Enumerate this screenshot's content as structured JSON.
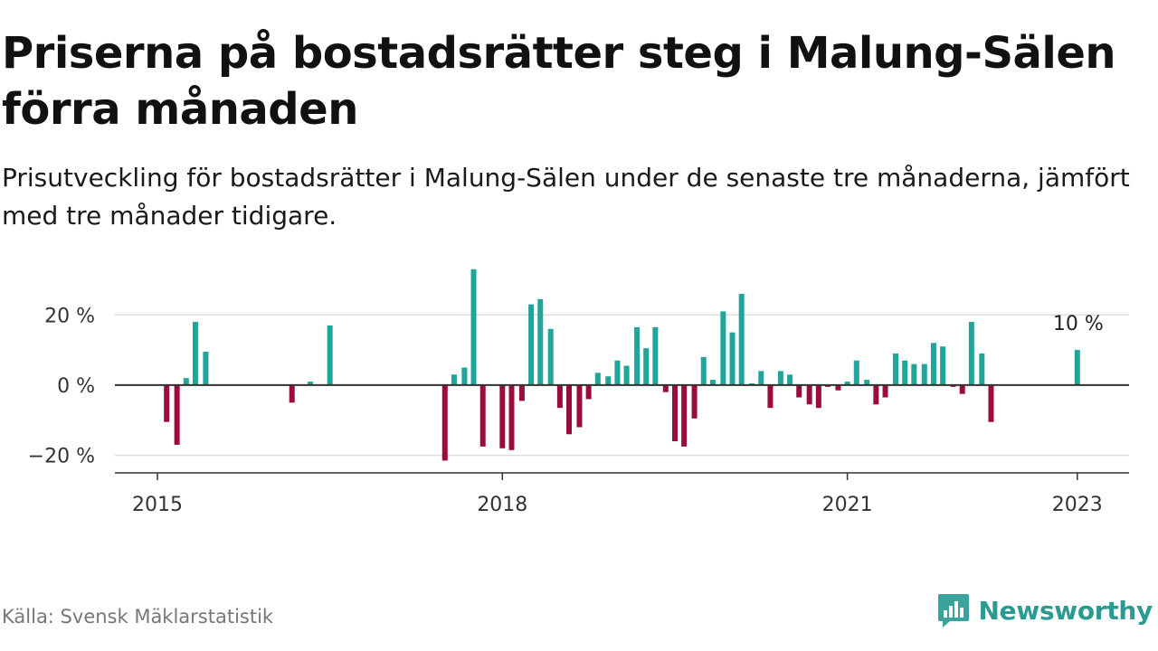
{
  "title": "Priserna på bostadsrätter steg i Malung-Sälen förra månaden",
  "subtitle": "Prisutveckling för bostadsrätter i Malung-Sälen under de senaste tre månaderna, jämfört med tre månader tidigare.",
  "source": "Källa: Svensk Mäklarstatistik",
  "brand": {
    "name": "Newsworthy",
    "icon": "newsworthy-logo-icon"
  },
  "colors": {
    "positive": "#1fa59a",
    "negative": "#9a0b3e",
    "axis": "#333333",
    "grid": "#dddddd"
  },
  "chart_data": {
    "type": "bar",
    "title": "Priserna på bostadsrätter steg i Malung-Sälen förra månaden",
    "xlabel": "",
    "ylabel": "",
    "ylim": [
      -25,
      35
    ],
    "xlim": [
      2014.63,
      2023.45
    ],
    "grid": true,
    "legend": "none",
    "annotation": {
      "x": 2023.0,
      "value": 10,
      "text": "10 %"
    },
    "xticks": [
      {
        "x": 2015.0,
        "label": "2015"
      },
      {
        "x": 2018.0,
        "label": "2018"
      },
      {
        "x": 2021.0,
        "label": "2021"
      },
      {
        "x": 2023.0,
        "label": "2023"
      }
    ],
    "yticks": [
      {
        "value": 20,
        "label": "20 %"
      },
      {
        "value": 0,
        "label": "0 %"
      },
      {
        "value": -20,
        "label": "−20 %"
      }
    ],
    "series": [
      {
        "x": [
          2015.08,
          2015.17,
          2015.25,
          2015.33,
          2015.42,
          2016.17,
          2016.33,
          2016.5,
          2017.5,
          2017.58,
          2017.67,
          2017.75,
          2017.83,
          2018.0,
          2018.08,
          2018.17,
          2018.25,
          2018.33,
          2018.42,
          2018.5,
          2018.58,
          2018.67,
          2018.75,
          2018.83,
          2018.92,
          2019.0,
          2019.08,
          2019.17,
          2019.25,
          2019.33,
          2019.42,
          2019.5,
          2019.58,
          2019.67,
          2019.75,
          2019.83,
          2019.92,
          2020.0,
          2020.08,
          2020.17,
          2020.25,
          2020.33,
          2020.42,
          2020.5,
          2020.58,
          2020.67,
          2020.75,
          2020.83,
          2020.92,
          2021.0,
          2021.08,
          2021.17,
          2021.25,
          2021.33,
          2021.42,
          2021.5,
          2021.58,
          2021.67,
          2021.75,
          2021.83,
          2021.92,
          2022.0,
          2022.08,
          2022.17,
          2022.25,
          2022.42,
          2023.0
        ],
        "values": [
          -10.5,
          -17,
          2,
          18,
          9.5,
          -5,
          1,
          17,
          -21.5,
          3,
          5,
          33,
          -17.5,
          -18,
          -18.5,
          -4.5,
          23,
          24.5,
          16,
          -6.5,
          -14,
          -12,
          -4,
          3.5,
          2.5,
          7,
          5.5,
          16.5,
          10.5,
          16.5,
          -2,
          -16,
          -17.5,
          -9.5,
          8,
          1.5,
          21,
          15,
          26,
          0.5,
          4,
          -6.5,
          4,
          3,
          -3.5,
          -5.5,
          -6.5,
          -0.5,
          -1.5,
          1,
          7,
          1.5,
          -5.5,
          -3.5,
          9,
          7,
          6,
          6,
          12,
          11,
          -0.5,
          -2.5,
          18,
          9,
          -10.5,
          0.1,
          10
        ]
      }
    ]
  }
}
